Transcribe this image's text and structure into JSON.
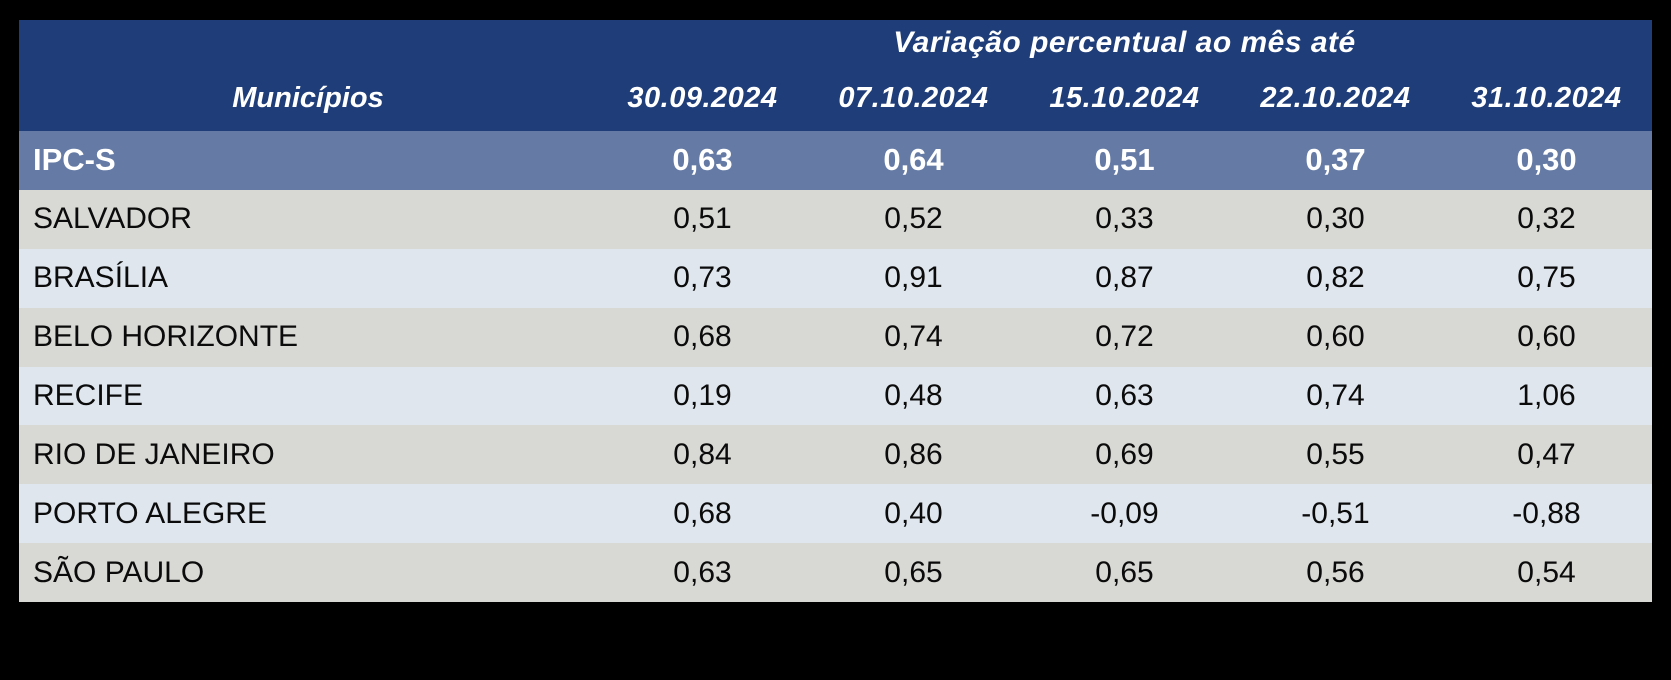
{
  "chart_data": {
    "type": "table",
    "title": "Variação percentual ao mês até",
    "columns": [
      "Municípios",
      "30.09.2024",
      "07.10.2024",
      "15.10.2024",
      "22.10.2024",
      "31.10.2024"
    ],
    "rows": [
      [
        "IPC-S",
        0.63,
        0.64,
        0.51,
        0.37,
        0.3
      ],
      [
        "SALVADOR",
        0.51,
        0.52,
        0.33,
        0.3,
        0.32
      ],
      [
        "BRASÍLIA",
        0.73,
        0.91,
        0.87,
        0.82,
        0.75
      ],
      [
        "BELO HORIZONTE",
        0.68,
        0.74,
        0.72,
        0.6,
        0.6
      ],
      [
        "RECIFE",
        0.19,
        0.48,
        0.63,
        0.74,
        1.06
      ],
      [
        "RIO DE JANEIRO",
        0.84,
        0.86,
        0.69,
        0.55,
        0.47
      ],
      [
        "PORTO ALEGRE",
        0.68,
        0.4,
        -0.09,
        -0.51,
        -0.88
      ],
      [
        "SÃO PAULO",
        0.63,
        0.65,
        0.65,
        0.56,
        0.54
      ]
    ],
    "layout": {
      "header_rows": 2,
      "summary_row": "IPC-S",
      "zebra_striping": true
    }
  },
  "table": {
    "header": {
      "group_title": "Variação percentual ao mês até",
      "municipios_label": "Municípios",
      "dates": [
        "30.09.2024",
        "07.10.2024",
        "15.10.2024",
        "22.10.2024",
        "31.10.2024"
      ]
    },
    "summary": {
      "label": "IPC-S",
      "values": [
        "0,63",
        "0,64",
        "0,51",
        "0,37",
        "0,30"
      ]
    },
    "rows": [
      {
        "label": "SALVADOR",
        "values": [
          "0,51",
          "0,52",
          "0,33",
          "0,30",
          "0,32"
        ]
      },
      {
        "label": "BRASÍLIA",
        "values": [
          "0,73",
          "0,91",
          "0,87",
          "0,82",
          "0,75"
        ]
      },
      {
        "label": "BELO HORIZONTE",
        "values": [
          "0,68",
          "0,74",
          "0,72",
          "0,60",
          "0,60"
        ]
      },
      {
        "label": "RECIFE",
        "values": [
          "0,19",
          "0,48",
          "0,63",
          "0,74",
          "1,06"
        ]
      },
      {
        "label": "RIO DE JANEIRO",
        "values": [
          "0,84",
          "0,86",
          "0,69",
          "0,55",
          "0,47"
        ]
      },
      {
        "label": "PORTO ALEGRE",
        "values": [
          "0,68",
          "0,40",
          "-0,09",
          "-0,51",
          "-0,88"
        ]
      },
      {
        "label": "SÃO PAULO",
        "values": [
          "0,63",
          "0,65",
          "0,65",
          "0,56",
          "0,54"
        ]
      }
    ],
    "colors": {
      "canvas_bg": "#000000",
      "header_bg": "#1F3D78",
      "header_text": "#FFFFFF",
      "summary_row_bg": "#657BA5",
      "summary_row_text": "#FFFFFF",
      "row_gray_bg": "#D8D8D4",
      "row_blue_bg": "#DFE6EE",
      "data_text": "#0B0B0B"
    }
  }
}
